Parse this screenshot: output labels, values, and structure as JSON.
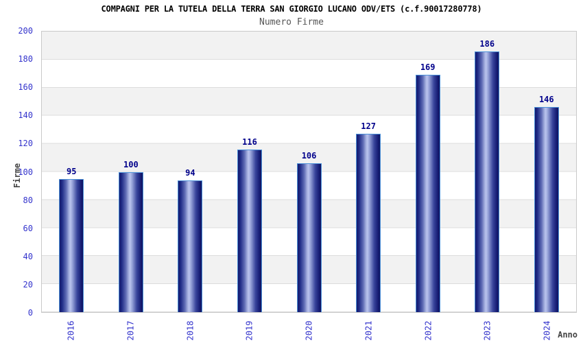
{
  "title": "COMPAGNI PER LA TUTELA DELLA TERRA SAN GIORGIO LUCANO ODV/ETS (c.f.90017280778)",
  "subtitle": "Numero Firme",
  "chart_data": {
    "type": "bar",
    "title": "COMPAGNI PER LA TUTELA DELLA TERRA SAN GIORGIO LUCANO ODV/ETS (c.f.90017280778)",
    "subtitle": "Numero Firme",
    "categories": [
      "2016",
      "2017",
      "2018",
      "2019",
      "2020",
      "2021",
      "2022",
      "2023",
      "2024"
    ],
    "values": [
      95,
      100,
      94,
      116,
      106,
      127,
      169,
      186,
      146
    ],
    "xlabel": "Anno",
    "ylabel": "Firme",
    "ylim": [
      0,
      200
    ],
    "ytick_step": 20,
    "grid": true,
    "legend": "none",
    "band_fill": "alternating horizontal bands every 20 units"
  },
  "colors": {
    "background": "#ffffff",
    "band_gray": "#f2f2f2",
    "gridline": "#dcdcdc",
    "plot_border": "#c9c9c9",
    "bar_edge_dark": "#141a6e",
    "bar_highlight": "#bac4ee",
    "bar_border": "#4b91d9",
    "tick_label_blue": "#3333cc",
    "value_label_navy": "#00008b",
    "axis_title_gray": "#444444",
    "title_black": "#000000",
    "subtitle_gray": "#555555"
  }
}
